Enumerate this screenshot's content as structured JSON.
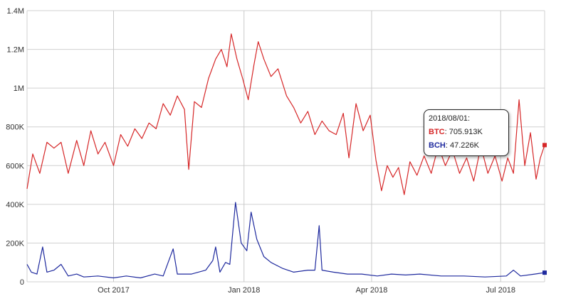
{
  "chart_data": {
    "type": "line",
    "xlabel": "",
    "ylabel": "",
    "x_range": [
      "2017-08-01",
      "2018-08-01"
    ],
    "ylim": [
      0,
      1400000
    ],
    "y_ticks": [
      0,
      200000,
      400000,
      600000,
      800000,
      1000000,
      1200000,
      1400000
    ],
    "y_tick_labels": [
      "0",
      "200K",
      "400K",
      "600K",
      "800K",
      "1M",
      "1.2M",
      "1.4M"
    ],
    "x_ticks": [
      "2017-10-01",
      "2018-01-01",
      "2018-04-01",
      "2018-07-01"
    ],
    "x_tick_labels": [
      "Oct 2017",
      "Jan 2018",
      "Apr 2018",
      "Jul 2018"
    ],
    "grid": true,
    "legend": "none",
    "series": [
      {
        "name": "BTC",
        "color": "#d62728",
        "points": [
          [
            "2017-08-01",
            480000
          ],
          [
            "2017-08-05",
            660000
          ],
          [
            "2017-08-10",
            560000
          ],
          [
            "2017-08-15",
            720000
          ],
          [
            "2017-08-20",
            690000
          ],
          [
            "2017-08-25",
            720000
          ],
          [
            "2017-08-30",
            560000
          ],
          [
            "2017-09-05",
            730000
          ],
          [
            "2017-09-10",
            600000
          ],
          [
            "2017-09-15",
            780000
          ],
          [
            "2017-09-20",
            660000
          ],
          [
            "2017-09-25",
            720000
          ],
          [
            "2017-10-01",
            600000
          ],
          [
            "2017-10-06",
            760000
          ],
          [
            "2017-10-11",
            700000
          ],
          [
            "2017-10-16",
            790000
          ],
          [
            "2017-10-21",
            740000
          ],
          [
            "2017-10-26",
            820000
          ],
          [
            "2017-10-31",
            790000
          ],
          [
            "2017-11-05",
            920000
          ],
          [
            "2017-11-10",
            860000
          ],
          [
            "2017-11-15",
            960000
          ],
          [
            "2017-11-20",
            890000
          ],
          [
            "2017-11-23",
            580000
          ],
          [
            "2017-11-27",
            930000
          ],
          [
            "2017-12-02",
            900000
          ],
          [
            "2017-12-07",
            1050000
          ],
          [
            "2017-12-12",
            1150000
          ],
          [
            "2017-12-16",
            1200000
          ],
          [
            "2017-12-20",
            1110000
          ],
          [
            "2017-12-23",
            1280000
          ],
          [
            "2017-12-27",
            1150000
          ],
          [
            "2017-12-31",
            1050000
          ],
          [
            "2018-01-04",
            940000
          ],
          [
            "2018-01-08",
            1120000
          ],
          [
            "2018-01-11",
            1240000
          ],
          [
            "2018-01-15",
            1150000
          ],
          [
            "2018-01-20",
            1060000
          ],
          [
            "2018-01-25",
            1100000
          ],
          [
            "2018-01-31",
            960000
          ],
          [
            "2018-02-05",
            900000
          ],
          [
            "2018-02-10",
            820000
          ],
          [
            "2018-02-15",
            880000
          ],
          [
            "2018-02-20",
            760000
          ],
          [
            "2018-02-25",
            830000
          ],
          [
            "2018-03-02",
            780000
          ],
          [
            "2018-03-07",
            760000
          ],
          [
            "2018-03-12",
            870000
          ],
          [
            "2018-03-16",
            640000
          ],
          [
            "2018-03-21",
            920000
          ],
          [
            "2018-03-26",
            780000
          ],
          [
            "2018-03-31",
            860000
          ],
          [
            "2018-04-04",
            630000
          ],
          [
            "2018-04-08",
            470000
          ],
          [
            "2018-04-12",
            600000
          ],
          [
            "2018-04-16",
            540000
          ],
          [
            "2018-04-20",
            590000
          ],
          [
            "2018-04-24",
            450000
          ],
          [
            "2018-04-28",
            620000
          ],
          [
            "2018-05-03",
            550000
          ],
          [
            "2018-05-08",
            650000
          ],
          [
            "2018-05-13",
            560000
          ],
          [
            "2018-05-18",
            700000
          ],
          [
            "2018-05-23",
            600000
          ],
          [
            "2018-05-28",
            680000
          ],
          [
            "2018-06-02",
            560000
          ],
          [
            "2018-06-07",
            640000
          ],
          [
            "2018-06-12",
            520000
          ],
          [
            "2018-06-17",
            700000
          ],
          [
            "2018-06-22",
            560000
          ],
          [
            "2018-06-27",
            650000
          ],
          [
            "2018-07-02",
            520000
          ],
          [
            "2018-07-06",
            640000
          ],
          [
            "2018-07-10",
            560000
          ],
          [
            "2018-07-14",
            940000
          ],
          [
            "2018-07-18",
            600000
          ],
          [
            "2018-07-22",
            770000
          ],
          [
            "2018-07-26",
            530000
          ],
          [
            "2018-07-29",
            640000
          ],
          [
            "2018-08-01",
            705913
          ]
        ]
      },
      {
        "name": "BCH",
        "color": "#1f2a9e",
        "points": [
          [
            "2017-08-01",
            90000
          ],
          [
            "2017-08-04",
            50000
          ],
          [
            "2017-08-08",
            40000
          ],
          [
            "2017-08-12",
            180000
          ],
          [
            "2017-08-15",
            50000
          ],
          [
            "2017-08-20",
            60000
          ],
          [
            "2017-08-25",
            90000
          ],
          [
            "2017-08-30",
            30000
          ],
          [
            "2017-09-05",
            40000
          ],
          [
            "2017-09-10",
            25000
          ],
          [
            "2017-09-20",
            30000
          ],
          [
            "2017-10-01",
            20000
          ],
          [
            "2017-10-10",
            30000
          ],
          [
            "2017-10-20",
            20000
          ],
          [
            "2017-10-30",
            40000
          ],
          [
            "2017-11-05",
            30000
          ],
          [
            "2017-11-12",
            170000
          ],
          [
            "2017-11-15",
            40000
          ],
          [
            "2017-11-25",
            40000
          ],
          [
            "2017-12-05",
            60000
          ],
          [
            "2017-12-10",
            110000
          ],
          [
            "2017-12-12",
            180000
          ],
          [
            "2017-12-15",
            50000
          ],
          [
            "2017-12-19",
            100000
          ],
          [
            "2017-12-22",
            90000
          ],
          [
            "2017-12-26",
            410000
          ],
          [
            "2017-12-30",
            200000
          ],
          [
            "2018-01-03",
            160000
          ],
          [
            "2018-01-06",
            360000
          ],
          [
            "2018-01-10",
            220000
          ],
          [
            "2018-01-15",
            130000
          ],
          [
            "2018-01-20",
            100000
          ],
          [
            "2018-01-28",
            70000
          ],
          [
            "2018-02-05",
            50000
          ],
          [
            "2018-02-15",
            60000
          ],
          [
            "2018-02-20",
            60000
          ],
          [
            "2018-02-23",
            290000
          ],
          [
            "2018-02-25",
            60000
          ],
          [
            "2018-03-05",
            50000
          ],
          [
            "2018-03-15",
            40000
          ],
          [
            "2018-03-25",
            40000
          ],
          [
            "2018-04-05",
            30000
          ],
          [
            "2018-04-15",
            40000
          ],
          [
            "2018-04-25",
            35000
          ],
          [
            "2018-05-05",
            40000
          ],
          [
            "2018-05-20",
            30000
          ],
          [
            "2018-06-05",
            30000
          ],
          [
            "2018-06-20",
            25000
          ],
          [
            "2018-07-05",
            30000
          ],
          [
            "2018-07-10",
            60000
          ],
          [
            "2018-07-15",
            30000
          ],
          [
            "2018-07-25",
            40000
          ],
          [
            "2018-08-01",
            47226
          ]
        ]
      }
    ],
    "tooltip": {
      "date": "2018/08/01:",
      "entries": [
        {
          "label": "BTC",
          "value": "705.913K",
          "color": "#d62728"
        },
        {
          "label": "BCH",
          "value": "47.226K",
          "color": "#1f2a9e"
        }
      ]
    }
  }
}
